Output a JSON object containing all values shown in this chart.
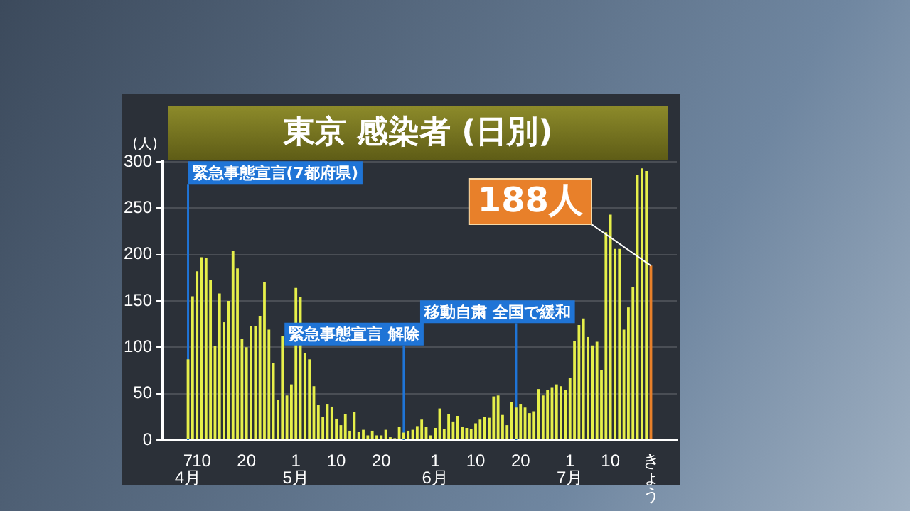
{
  "chart_data": {
    "type": "bar",
    "title": "東京 感染者 (日別)",
    "ylabel": "(人)",
    "x": [
      "--04-07",
      "--04-08",
      "--04-09",
      "--04-10",
      "--04-11",
      "--04-12",
      "--04-13",
      "--04-14",
      "--04-15",
      "--04-16",
      "--04-17",
      "--04-18",
      "--04-19",
      "--04-20",
      "--04-21",
      "--04-22",
      "--04-23",
      "--04-24",
      "--04-25",
      "--04-26",
      "--04-27",
      "--04-28",
      "--04-29",
      "--04-30",
      "--05-01",
      "--05-02",
      "--05-03",
      "--05-04",
      "--05-05",
      "--05-06",
      "--05-07",
      "--05-08",
      "--05-09",
      "--05-10",
      "--05-11",
      "--05-12",
      "--05-13",
      "--05-14",
      "--05-15",
      "--05-16",
      "--05-17",
      "--05-18",
      "--05-19",
      "--05-20",
      "--05-21",
      "--05-22",
      "--05-23",
      "--05-24",
      "--05-25",
      "--05-26",
      "--05-27",
      "--05-28",
      "--05-29",
      "--05-30",
      "--05-31",
      "--06-01",
      "--06-02",
      "--06-03",
      "--06-04",
      "--06-05",
      "--06-06",
      "--06-07",
      "--06-08",
      "--06-09",
      "--06-10",
      "--06-11",
      "--06-12",
      "--06-13",
      "--06-14",
      "--06-15",
      "--06-16",
      "--06-17",
      "--06-18",
      "--06-19",
      "--06-20",
      "--06-21",
      "--06-22",
      "--06-23",
      "--06-24",
      "--06-25",
      "--06-26",
      "--06-27",
      "--06-28",
      "--06-29",
      "--06-30",
      "--07-01",
      "--07-02",
      "--07-03",
      "--07-04",
      "--07-05",
      "--07-06",
      "--07-07",
      "--07-08",
      "--07-09",
      "--07-10",
      "--07-11",
      "--07-12",
      "--07-13",
      "--07-14",
      "--07-15",
      "--07-16",
      "--07-17",
      "--07-18",
      "--07-19"
    ],
    "values": [
      87,
      155,
      182,
      197,
      196,
      173,
      101,
      158,
      127,
      150,
      204,
      185,
      109,
      100,
      123,
      123,
      134,
      170,
      119,
      83,
      43,
      112,
      48,
      60,
      164,
      154,
      94,
      87,
      58,
      38,
      25,
      39,
      36,
      23,
      16,
      28,
      10,
      30,
      9,
      11,
      5,
      10,
      5,
      5,
      11,
      3,
      2,
      14,
      8,
      10,
      11,
      15,
      22,
      14,
      5,
      13,
      34,
      12,
      28,
      20,
      26,
      14,
      13,
      12,
      18,
      22,
      25,
      24,
      47,
      48,
      27,
      16,
      41,
      35,
      39,
      35,
      29,
      31,
      55,
      48,
      54,
      57,
      60,
      58,
      54,
      67,
      107,
      124,
      131,
      111,
      102,
      106,
      75,
      224,
      243,
      206,
      206,
      119,
      143,
      165,
      286,
      293,
      290,
      188
    ],
    "colors": [
      "#e6ef4a",
      "#e6ef4a",
      "#e6ef4a",
      "#e6ef4a",
      "#e6ef4a",
      "#e6ef4a",
      "#e6ef4a",
      "#e6ef4a",
      "#e6ef4a",
      "#e6ef4a",
      "#e6ef4a",
      "#e6ef4a",
      "#e6ef4a",
      "#e6ef4a",
      "#e6ef4a",
      "#e6ef4a",
      "#e6ef4a",
      "#e6ef4a",
      "#e6ef4a",
      "#e6ef4a",
      "#e6ef4a",
      "#e6ef4a",
      "#e6ef4a",
      "#e6ef4a",
      "#e6ef4a",
      "#e6ef4a",
      "#e6ef4a",
      "#e6ef4a",
      "#e6ef4a",
      "#e6ef4a",
      "#e6ef4a",
      "#e6ef4a",
      "#e6ef4a",
      "#e6ef4a",
      "#e6ef4a",
      "#e6ef4a",
      "#e6ef4a",
      "#e6ef4a",
      "#e6ef4a",
      "#e6ef4a",
      "#e6ef4a",
      "#e6ef4a",
      "#e6ef4a",
      "#e6ef4a",
      "#e6ef4a",
      "#e6ef4a",
      "#e6ef4a",
      "#e6ef4a",
      "#e6ef4a",
      "#e6ef4a",
      "#e6ef4a",
      "#e6ef4a",
      "#e6ef4a",
      "#e6ef4a",
      "#e6ef4a",
      "#e6ef4a",
      "#e6ef4a",
      "#e6ef4a",
      "#e6ef4a",
      "#e6ef4a",
      "#e6ef4a",
      "#e6ef4a",
      "#e6ef4a",
      "#e6ef4a",
      "#e6ef4a",
      "#e6ef4a",
      "#e6ef4a",
      "#e6ef4a",
      "#e6ef4a",
      "#e6ef4a",
      "#e6ef4a",
      "#e6ef4a",
      "#e6ef4a",
      "#e6ef4a",
      "#e6ef4a",
      "#e6ef4a",
      "#e6ef4a",
      "#e6ef4a",
      "#e6ef4a",
      "#e6ef4a",
      "#e6ef4a",
      "#e6ef4a",
      "#e6ef4a",
      "#e6ef4a",
      "#e6ef4a",
      "#e6ef4a",
      "#e6ef4a",
      "#e6ef4a",
      "#e6ef4a",
      "#e6ef4a",
      "#e6ef4a",
      "#e6ef4a",
      "#e6ef4a",
      "#e6ef4a",
      "#e6ef4a",
      "#e6ef4a",
      "#e6ef4a",
      "#e6ef4a",
      "#e6ef4a",
      "#e6ef4a",
      "#e6ef4a",
      "#e6ef4a",
      "#e6ef4a",
      "#e8802a"
    ],
    "xlim": [
      "--04-06",
      "--07-20"
    ],
    "xticks": [
      {
        "value": "--04-07",
        "label": "7\n4月"
      },
      {
        "value": "--04-10",
        "label": "10"
      },
      {
        "value": "--04-20",
        "label": "20"
      },
      {
        "value": "--05-01",
        "label": "1\n5月"
      },
      {
        "value": "--05-10",
        "label": "10"
      },
      {
        "value": "--05-20",
        "label": "20"
      },
      {
        "value": "--06-01",
        "label": "1\n6月"
      },
      {
        "value": "--06-10",
        "label": "10"
      },
      {
        "value": "--06-20",
        "label": "20"
      },
      {
        "value": "--07-01",
        "label": "1\n7月"
      },
      {
        "value": "--07-10",
        "label": "10"
      },
      {
        "value": "--07-19",
        "label": "きょう"
      }
    ],
    "ylim": [
      0,
      300
    ],
    "yticks": [
      0,
      50,
      100,
      150,
      200,
      250,
      300
    ],
    "grid": "y",
    "legend": false,
    "ref_lines": [
      {
        "axis": "x",
        "value": "--04-07",
        "label": "緊急事態宣言(7都府県)",
        "color": "#1f74d6"
      },
      {
        "axis": "x",
        "value": "--05-25",
        "label": "緊急事態宣言 解除",
        "color": "#1f74d6"
      },
      {
        "axis": "x",
        "value": "--06-19",
        "label": "移動自粛 全国で緩和",
        "color": "#1f74d6"
      }
    ],
    "annotations": [
      {
        "text": "188人",
        "x": "--07-19",
        "y": 188
      }
    ]
  }
}
